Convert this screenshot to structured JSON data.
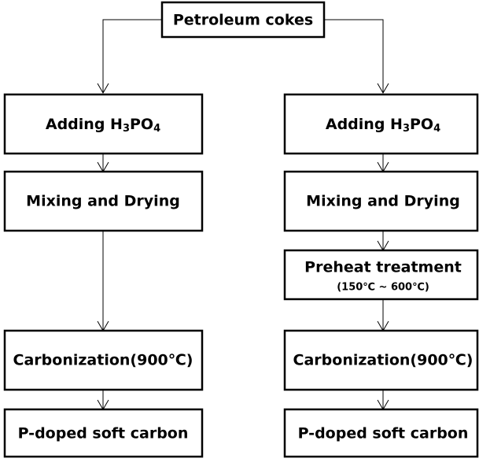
{
  "nodes": [
    {
      "label": "Petroleum cokes"
    },
    {
      "label_parts": [
        "Adding  H",
        "3",
        "PO",
        "4"
      ]
    },
    {
      "label": "Mixing and Drying"
    },
    {
      "label": "Carbonization(900℃)"
    },
    {
      "label": "P-doped soft carbon"
    },
    {
      "label_parts": [
        "Adding  H",
        "3",
        "PO",
        "4"
      ]
    },
    {
      "label": "Mixing and Drying"
    },
    {
      "label": "Preheat treatment",
      "sublabel": "(150℃ ~ 600℃)"
    },
    {
      "label": "Carbonization(900℃)"
    },
    {
      "label": "P-doped soft carbon"
    }
  ]
}
